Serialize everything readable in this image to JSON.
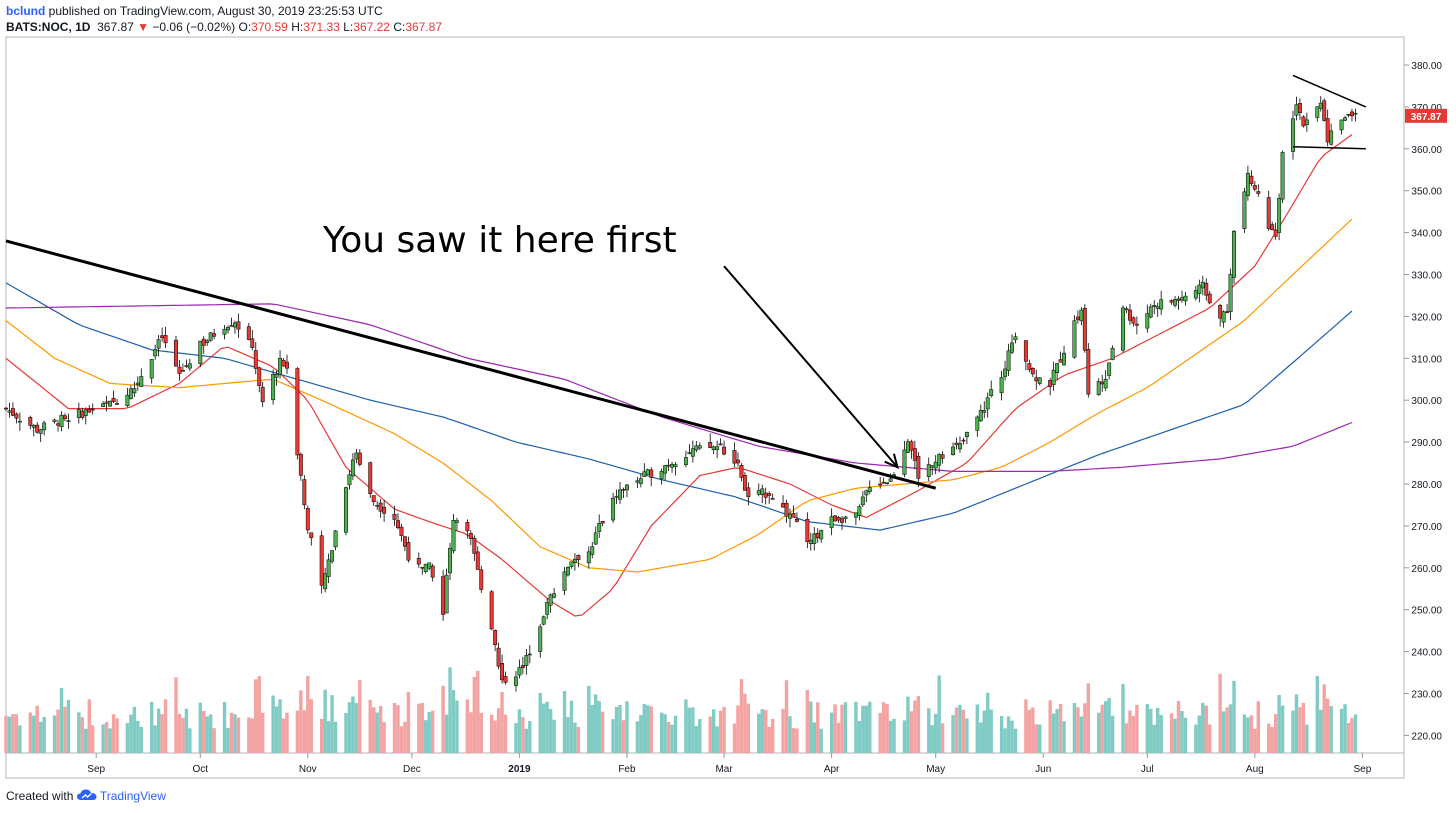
{
  "header": {
    "author": "bclund",
    "published": "published on TradingView.com, August 30, 2019 23:25:53 UTC",
    "symbol": "BATS:NOC, 1D",
    "last": "367.87",
    "change_arrow": "▼",
    "change": "−0.06 (−0.02%)",
    "o_label": "O:",
    "o": "370.59",
    "h_label": "H:",
    "h": "371.33",
    "l_label": "L:",
    "l": "367.22",
    "c_label": "C:",
    "c": "367.87"
  },
  "footer": {
    "created_with": "Created with",
    "brand": "TradingView",
    "icon": "tradingview-cloud-icon"
  },
  "annotation": {
    "text": "You saw it here first"
  },
  "colors": {
    "up": "#4caf50",
    "down": "#e53935",
    "vol_up": "#80cbc4",
    "vol_down": "#f4a3a3",
    "ma20": "#e53935",
    "ma50": "#ff9800",
    "ma100": "#1e5fa8",
    "ma200": "#9c27b0",
    "last_label_bg": "#e53935"
  },
  "chart_data": {
    "type": "candlestick",
    "symbol": "BATS:NOC",
    "interval": "1D",
    "y_axis": {
      "range": [
        215,
        385
      ],
      "ticks": [
        "380.00",
        "370.00",
        "360.00",
        "350.00",
        "340.00",
        "330.00",
        "320.00",
        "310.00",
        "300.00",
        "290.00",
        "280.00",
        "270.00",
        "260.00",
        "250.00",
        "240.00",
        "230.00",
        "220.00"
      ],
      "last_price_label": "367.87"
    },
    "x_axis": {
      "range": [
        "2018-08-06",
        "2019-09-13"
      ],
      "ticks": [
        {
          "label": "Sep",
          "date": "2018-09-01"
        },
        {
          "label": "Oct",
          "date": "2018-10-01"
        },
        {
          "label": "Nov",
          "date": "2018-11-01"
        },
        {
          "label": "Dec",
          "date": "2018-12-01"
        },
        {
          "label": "2019",
          "date": "2019-01-01",
          "bold": true
        },
        {
          "label": "Feb",
          "date": "2019-02-01"
        },
        {
          "label": "Mar",
          "date": "2019-03-01"
        },
        {
          "label": "Apr",
          "date": "2019-04-01"
        },
        {
          "label": "May",
          "date": "2019-05-01"
        },
        {
          "label": "Jun",
          "date": "2019-06-01"
        },
        {
          "label": "Jul",
          "date": "2019-07-01"
        },
        {
          "label": "Aug",
          "date": "2019-08-01"
        },
        {
          "label": "Sep",
          "date": "2019-09-01"
        }
      ]
    },
    "price_path": [
      [
        "2018-08-06",
        298
      ],
      [
        "2018-08-15",
        293
      ],
      [
        "2018-08-24",
        296
      ],
      [
        "2018-09-05",
        299
      ],
      [
        "2018-09-12",
        303
      ],
      [
        "2018-09-20",
        315
      ],
      [
        "2018-09-25",
        306
      ],
      [
        "2018-10-01",
        313
      ],
      [
        "2018-10-08",
        318
      ],
      [
        "2018-10-11",
        319
      ],
      [
        "2018-10-16",
        312
      ],
      [
        "2018-10-19",
        300
      ],
      [
        "2018-10-24",
        309
      ],
      [
        "2018-10-26",
        308
      ],
      [
        "2018-10-29",
        288
      ],
      [
        "2018-11-01",
        270
      ],
      [
        "2018-11-05",
        255
      ],
      [
        "2018-11-08",
        265
      ],
      [
        "2018-11-12",
        280
      ],
      [
        "2018-11-15",
        288
      ],
      [
        "2018-11-20",
        276
      ],
      [
        "2018-11-26",
        272
      ],
      [
        "2018-11-30",
        263
      ],
      [
        "2018-12-06",
        260
      ],
      [
        "2018-12-10",
        250
      ],
      [
        "2018-12-13",
        272
      ],
      [
        "2018-12-17",
        270
      ],
      [
        "2018-12-20",
        259
      ],
      [
        "2018-12-24",
        246
      ],
      [
        "2018-12-27",
        233
      ],
      [
        "2019-01-02",
        236
      ],
      [
        "2019-01-07",
        247
      ],
      [
        "2019-01-11",
        255
      ],
      [
        "2019-01-16",
        262
      ],
      [
        "2019-01-21",
        264
      ],
      [
        "2019-01-28",
        277
      ],
      [
        "2019-02-04",
        281
      ],
      [
        "2019-02-11",
        284
      ],
      [
        "2019-02-20",
        288
      ],
      [
        "2019-02-28",
        289
      ],
      [
        "2019-03-05",
        284
      ],
      [
        "2019-03-08",
        277
      ],
      [
        "2019-03-14",
        278
      ],
      [
        "2019-03-20",
        272
      ],
      [
        "2019-03-26",
        266
      ],
      [
        "2019-04-01",
        272
      ],
      [
        "2019-04-08",
        272
      ],
      [
        "2019-04-12",
        280
      ],
      [
        "2019-04-18",
        281
      ],
      [
        "2019-04-23",
        291
      ],
      [
        "2019-04-26",
        282
      ],
      [
        "2019-05-02",
        287
      ],
      [
        "2019-05-08",
        289
      ],
      [
        "2019-05-14",
        297
      ],
      [
        "2019-05-20",
        306
      ],
      [
        "2019-05-24",
        316
      ],
      [
        "2019-05-29",
        306
      ],
      [
        "2019-06-03",
        304
      ],
      [
        "2019-06-07",
        312
      ],
      [
        "2019-06-12",
        322
      ],
      [
        "2019-06-14",
        301
      ],
      [
        "2019-06-19",
        306
      ],
      [
        "2019-06-24",
        322
      ],
      [
        "2019-06-28",
        318
      ],
      [
        "2019-07-03",
        323
      ],
      [
        "2019-07-10",
        324
      ],
      [
        "2019-07-17",
        327
      ],
      [
        "2019-07-22",
        320
      ],
      [
        "2019-07-24",
        322
      ],
      [
        "2019-07-26",
        340
      ],
      [
        "2019-07-30",
        353
      ],
      [
        "2019-08-02",
        349
      ],
      [
        "2019-08-05",
        342
      ],
      [
        "2019-08-07",
        338
      ],
      [
        "2019-08-09",
        358
      ],
      [
        "2019-08-13",
        370
      ],
      [
        "2019-08-15",
        366
      ],
      [
        "2019-08-20",
        372
      ],
      [
        "2019-08-22",
        362
      ],
      [
        "2019-08-27",
        368
      ],
      [
        "2019-08-30",
        367.87
      ]
    ],
    "moving_averages": [
      {
        "id": "ma20",
        "path": [
          [
            "2018-08-06",
            310
          ],
          [
            "2018-08-24",
            298
          ],
          [
            "2018-09-10",
            298
          ],
          [
            "2018-09-25",
            304
          ],
          [
            "2018-10-08",
            313
          ],
          [
            "2018-10-22",
            308
          ],
          [
            "2018-11-01",
            300
          ],
          [
            "2018-11-12",
            284
          ],
          [
            "2018-11-26",
            274
          ],
          [
            "2018-12-06",
            271
          ],
          [
            "2018-12-17",
            268
          ],
          [
            "2018-12-27",
            262
          ],
          [
            "2019-01-10",
            252
          ],
          [
            "2019-01-18",
            248
          ],
          [
            "2019-01-28",
            255
          ],
          [
            "2019-02-08",
            270
          ],
          [
            "2019-02-22",
            282
          ],
          [
            "2019-03-05",
            284
          ],
          [
            "2019-03-20",
            280
          ],
          [
            "2019-04-01",
            275
          ],
          [
            "2019-04-11",
            272
          ],
          [
            "2019-04-25",
            278
          ],
          [
            "2019-05-10",
            285
          ],
          [
            "2019-05-24",
            298
          ],
          [
            "2019-06-07",
            306
          ],
          [
            "2019-06-21",
            310
          ],
          [
            "2019-07-05",
            316
          ],
          [
            "2019-07-19",
            322
          ],
          [
            "2019-08-01",
            332
          ],
          [
            "2019-08-10",
            344
          ],
          [
            "2019-08-20",
            358
          ],
          [
            "2019-08-30",
            364
          ]
        ]
      },
      {
        "id": "ma50",
        "path": [
          [
            "2018-08-06",
            319
          ],
          [
            "2018-08-20",
            310
          ],
          [
            "2018-09-05",
            304
          ],
          [
            "2018-09-25",
            303
          ],
          [
            "2018-10-08",
            304
          ],
          [
            "2018-10-22",
            305
          ],
          [
            "2018-11-05",
            300
          ],
          [
            "2018-11-26",
            292
          ],
          [
            "2018-12-10",
            285
          ],
          [
            "2018-12-24",
            276
          ],
          [
            "2019-01-07",
            265
          ],
          [
            "2019-01-21",
            260
          ],
          [
            "2019-02-04",
            259
          ],
          [
            "2019-02-25",
            262
          ],
          [
            "2019-03-11",
            268
          ],
          [
            "2019-03-25",
            276
          ],
          [
            "2019-04-08",
            279
          ],
          [
            "2019-04-22",
            280
          ],
          [
            "2019-05-06",
            281
          ],
          [
            "2019-05-20",
            284
          ],
          [
            "2019-06-03",
            290
          ],
          [
            "2019-06-17",
            297
          ],
          [
            "2019-07-01",
            303
          ],
          [
            "2019-07-15",
            311
          ],
          [
            "2019-07-29",
            319
          ],
          [
            "2019-08-12",
            330
          ],
          [
            "2019-08-30",
            344
          ]
        ]
      },
      {
        "id": "ma100",
        "path": [
          [
            "2018-08-06",
            328
          ],
          [
            "2018-08-27",
            318
          ],
          [
            "2018-09-17",
            312
          ],
          [
            "2018-10-08",
            310
          ],
          [
            "2018-10-29",
            305
          ],
          [
            "2018-11-19",
            300
          ],
          [
            "2018-12-10",
            296
          ],
          [
            "2018-12-31",
            290
          ],
          [
            "2019-01-21",
            286
          ],
          [
            "2019-02-11",
            281
          ],
          [
            "2019-03-04",
            277
          ],
          [
            "2019-03-25",
            271
          ],
          [
            "2019-04-15",
            269
          ],
          [
            "2019-05-06",
            273
          ],
          [
            "2019-05-27",
            280
          ],
          [
            "2019-06-17",
            287
          ],
          [
            "2019-07-08",
            293
          ],
          [
            "2019-07-29",
            299
          ],
          [
            "2019-08-12",
            309
          ],
          [
            "2019-08-30",
            322
          ]
        ]
      },
      {
        "id": "ma200",
        "path": [
          [
            "2018-08-06",
            322
          ],
          [
            "2018-10-22",
            323
          ],
          [
            "2018-11-19",
            318
          ],
          [
            "2018-12-17",
            310
          ],
          [
            "2019-01-14",
            305
          ],
          [
            "2019-02-11",
            296
          ],
          [
            "2019-03-11",
            289
          ],
          [
            "2019-04-08",
            285
          ],
          [
            "2019-05-06",
            283
          ],
          [
            "2019-06-03",
            283
          ],
          [
            "2019-06-24",
            284
          ],
          [
            "2019-07-22",
            286
          ],
          [
            "2019-08-12",
            289
          ],
          [
            "2019-08-30",
            295
          ]
        ]
      }
    ],
    "volume_scale": [
      0,
      100
    ],
    "trendlines": [
      {
        "id": "long-downtrend",
        "from": [
          "2018-08-06",
          338
        ],
        "to": [
          "2019-05-01",
          279
        ],
        "width": 3
      },
      {
        "id": "triangle-top",
        "from": [
          "2019-08-12",
          377.5
        ],
        "to": [
          "2019-09-02",
          370
        ]
      },
      {
        "id": "triangle-bottom",
        "from": [
          "2019-08-12",
          360.5
        ],
        "to": [
          "2019-09-02",
          360
        ]
      }
    ],
    "arrow": {
      "from": [
        "2019-03-01",
        332
      ],
      "to": [
        "2019-04-20",
        284
      ]
    }
  }
}
